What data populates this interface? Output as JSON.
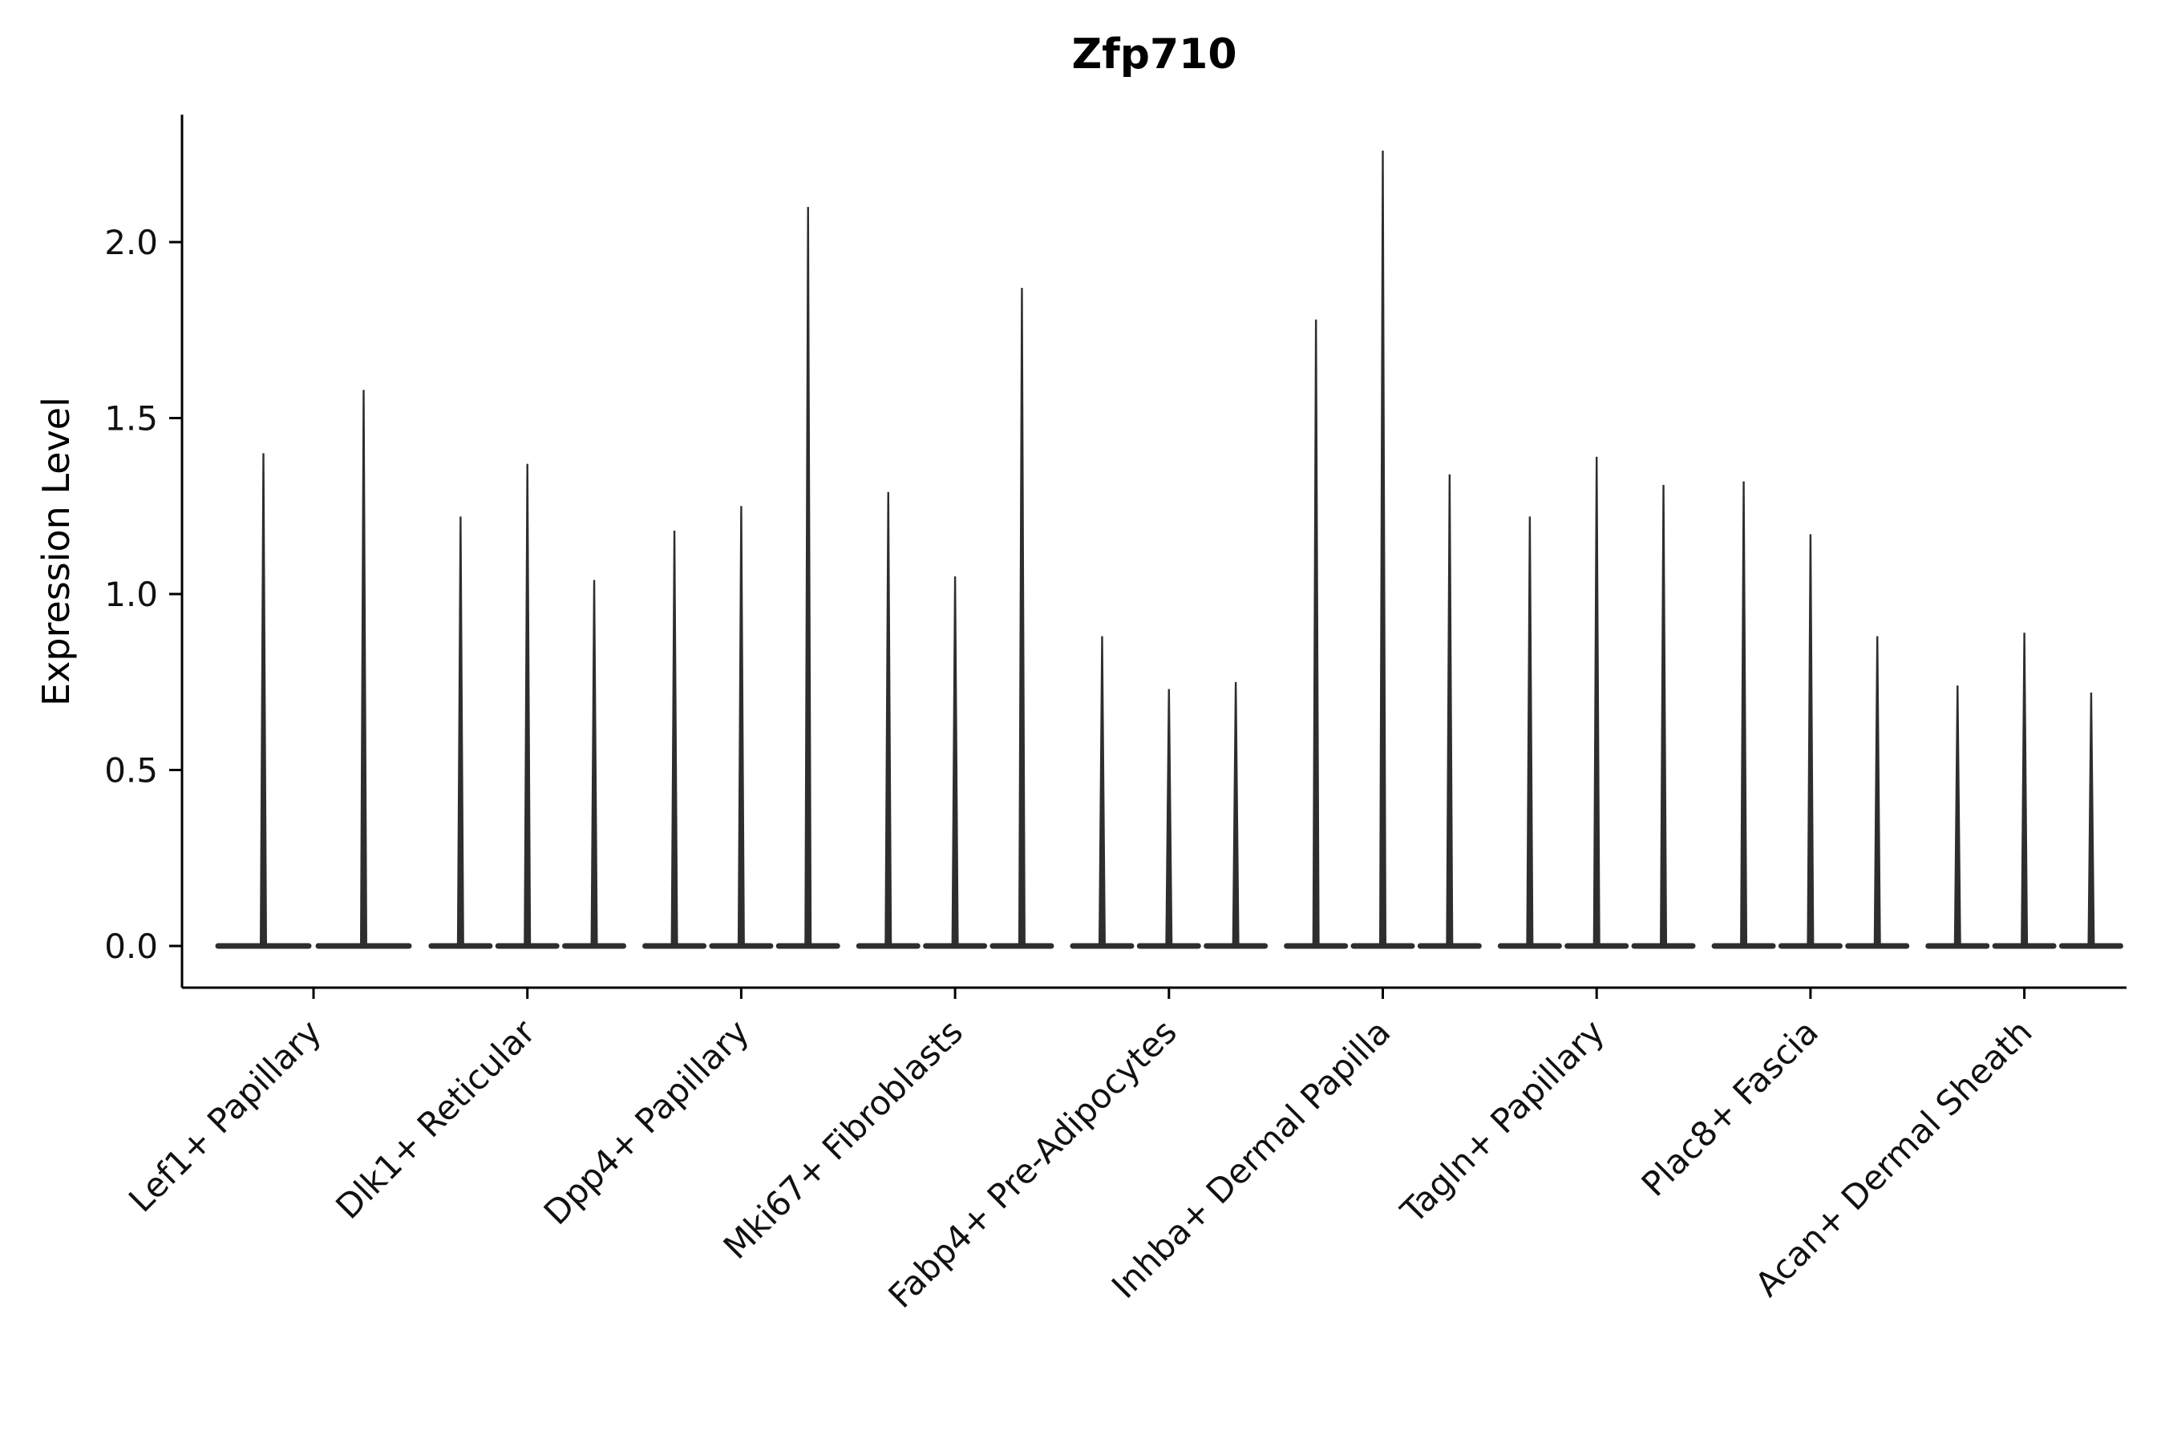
{
  "chart_data": {
    "type": "violin",
    "title": "Zfp710",
    "xlabel": "",
    "ylabel": "Expression Level",
    "ylim": [
      -0.12,
      2.36
    ],
    "yticks": [
      0.0,
      0.5,
      1.0,
      1.5,
      2.0
    ],
    "grid": false,
    "legend": "none",
    "violin_color": "#2e2e2e",
    "axis_color": "#000000",
    "tick_label_color": "#111111",
    "note": "Sparse expression violins: wide base at 0 with thin spike up to per-violin maximum expression",
    "groups": [
      {
        "label": "Lef1+ Papillary",
        "violin_maxima": [
          1.4,
          1.58
        ]
      },
      {
        "label": "Dlk1+ Reticular",
        "violin_maxima": [
          1.22,
          1.37,
          1.04
        ]
      },
      {
        "label": "Dpp4+ Papillary",
        "violin_maxima": [
          1.18,
          1.25,
          2.1
        ]
      },
      {
        "label": "Mki67+ Fibroblasts",
        "violin_maxima": [
          1.29,
          1.05,
          1.87
        ]
      },
      {
        "label": "Fabp4+ Pre-Adipocytes",
        "violin_maxima": [
          0.88,
          0.73,
          0.75
        ]
      },
      {
        "label": "Inhba+ Dermal Papilla",
        "violin_maxima": [
          1.78,
          2.26,
          1.34
        ]
      },
      {
        "label": "Tagln+ Papillary",
        "violin_maxima": [
          1.22,
          1.39,
          1.31
        ]
      },
      {
        "label": "Plac8+ Fascia",
        "violin_maxima": [
          1.32,
          1.17,
          0.88
        ]
      },
      {
        "label": "Acan+ Dermal Sheath",
        "violin_maxima": [
          0.74,
          0.89,
          0.72
        ]
      }
    ]
  }
}
